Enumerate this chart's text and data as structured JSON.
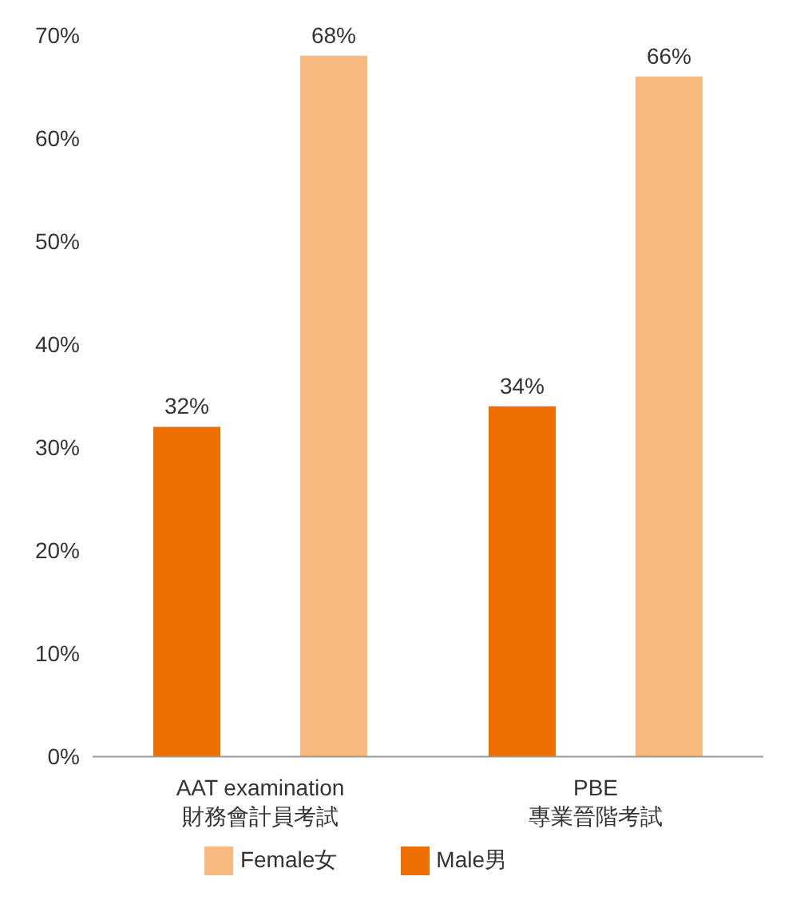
{
  "chart_data": {
    "type": "bar",
    "categories": [
      "AAT examination\n財務會計員考試",
      "PBE\n專業晉階考試"
    ],
    "series": [
      {
        "name": "Male男",
        "color": "#ee6e00",
        "values": [
          32,
          34
        ],
        "value_labels": [
          "32%",
          "34%"
        ]
      },
      {
        "name": "Female女",
        "color": "#f7b97e",
        "values": [
          68,
          66
        ],
        "value_labels": [
          "68%",
          "66%"
        ]
      }
    ],
    "ylim": [
      0,
      70
    ],
    "yticks": [
      {
        "value": 0,
        "label": "0%"
      },
      {
        "value": 10,
        "label": "10%"
      },
      {
        "value": 20,
        "label": "20%"
      },
      {
        "value": 30,
        "label": "30%"
      },
      {
        "value": 40,
        "label": "40%"
      },
      {
        "value": 50,
        "label": "50%"
      },
      {
        "value": 60,
        "label": "60%"
      },
      {
        "value": 70,
        "label": "70%"
      }
    ],
    "grid": false,
    "legend": "bottom"
  }
}
